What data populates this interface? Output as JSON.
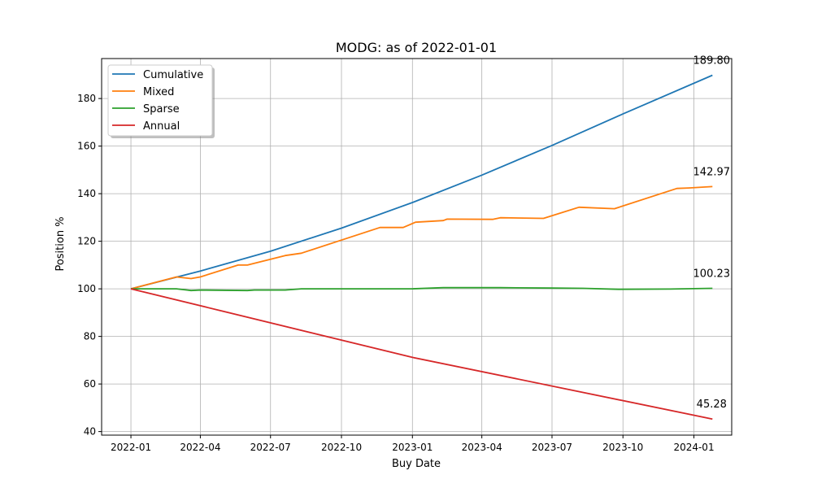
{
  "chart_data": {
    "type": "line",
    "title": "MODG: as of 2022-01-01",
    "xlabel": "Buy Date",
    "ylabel": "Position %",
    "x_ticks": [
      "2022-01",
      "2022-04",
      "2022-07",
      "2022-10",
      "2023-01",
      "2023-04",
      "2023-07",
      "2023-10",
      "2024-01"
    ],
    "y_ticks": [
      40,
      60,
      80,
      100,
      120,
      140,
      160,
      180
    ],
    "xlim": [
      "2021-11-24",
      "2024-02-19"
    ],
    "ylim": [
      38.5,
      196.8
    ],
    "grid": true,
    "legend_position": "upper-left",
    "series": [
      {
        "name": "Cumulative",
        "color": "#1f77b4",
        "end_label": "189.80",
        "points": [
          [
            "2022-01-01",
            100
          ],
          [
            "2022-04-01",
            107.5
          ],
          [
            "2022-07-01",
            115.8
          ],
          [
            "2022-10-01",
            125.5
          ],
          [
            "2023-01-01",
            136.3
          ],
          [
            "2023-04-01",
            147.8
          ],
          [
            "2023-07-01",
            160.3
          ],
          [
            "2023-10-01",
            173.5
          ],
          [
            "2024-01-25",
            189.8
          ]
        ]
      },
      {
        "name": "Mixed",
        "color": "#ff7f0e",
        "end_label": "142.97",
        "points": [
          [
            "2022-01-01",
            100
          ],
          [
            "2022-03-01",
            105.0
          ],
          [
            "2022-03-20",
            104.3
          ],
          [
            "2022-04-01",
            105.0
          ],
          [
            "2022-05-20",
            110.0
          ],
          [
            "2022-06-01",
            110.0
          ],
          [
            "2022-07-20",
            114.0
          ],
          [
            "2022-08-10",
            115.0
          ],
          [
            "2022-11-20",
            125.8
          ],
          [
            "2022-12-20",
            125.8
          ],
          [
            "2023-01-05",
            128.0
          ],
          [
            "2023-02-10",
            128.7
          ],
          [
            "2023-02-15",
            129.3
          ],
          [
            "2023-04-15",
            129.2
          ],
          [
            "2023-04-25",
            129.9
          ],
          [
            "2023-06-20",
            129.6
          ],
          [
            "2023-08-05",
            134.3
          ],
          [
            "2023-09-20",
            133.7
          ],
          [
            "2023-12-10",
            142.2
          ],
          [
            "2023-12-25",
            142.4
          ],
          [
            "2024-01-25",
            142.97
          ]
        ]
      },
      {
        "name": "Sparse",
        "color": "#2ca02c",
        "end_label": "100.23",
        "points": [
          [
            "2022-01-01",
            100
          ],
          [
            "2022-03-01",
            100.0
          ],
          [
            "2022-03-15",
            99.5
          ],
          [
            "2022-03-20",
            99.3
          ],
          [
            "2022-04-01",
            99.5
          ],
          [
            "2022-06-01",
            99.3
          ],
          [
            "2022-06-10",
            99.5
          ],
          [
            "2022-07-20",
            99.5
          ],
          [
            "2022-08-10",
            100.0
          ],
          [
            "2023-01-01",
            100.0
          ],
          [
            "2023-02-10",
            100.5
          ],
          [
            "2023-04-25",
            100.5
          ],
          [
            "2023-07-01",
            100.3
          ],
          [
            "2023-08-10",
            100.2
          ],
          [
            "2023-09-25",
            99.8
          ],
          [
            "2023-12-01",
            99.9
          ],
          [
            "2024-01-25",
            100.23
          ]
        ]
      },
      {
        "name": "Annual",
        "color": "#d62728",
        "end_label": "45.28",
        "points": [
          [
            "2022-01-01",
            100
          ],
          [
            "2023-01-01",
            71.2
          ],
          [
            "2024-01-25",
            45.28
          ]
        ]
      }
    ]
  }
}
